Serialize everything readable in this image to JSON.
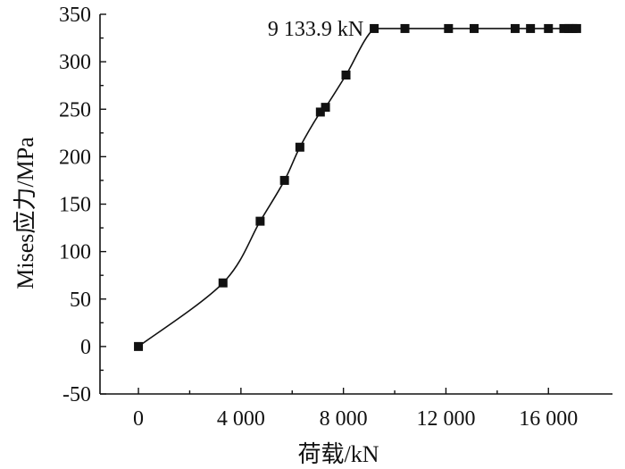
{
  "chart_data": {
    "type": "line",
    "title": "",
    "xlabel": "荷载/kN",
    "ylabel": "Mises应力/MPa",
    "xlim": [
      -1500,
      18500
    ],
    "ylim": [
      -50,
      350
    ],
    "xticks": [
      {
        "value": 0,
        "label": "0"
      },
      {
        "value": 4000,
        "label": "4 000"
      },
      {
        "value": 8000,
        "label": "8 000"
      },
      {
        "value": 12000,
        "label": "12 000"
      },
      {
        "value": 16000,
        "label": "16 000"
      }
    ],
    "yticks": [
      {
        "value": -50,
        "label": "-50"
      },
      {
        "value": 0,
        "label": "0"
      },
      {
        "value": 50,
        "label": "50"
      },
      {
        "value": 100,
        "label": "100"
      },
      {
        "value": 150,
        "label": "150"
      },
      {
        "value": 200,
        "label": "200"
      },
      {
        "value": 250,
        "label": "250"
      },
      {
        "value": 300,
        "label": "300"
      },
      {
        "value": 350,
        "label": "350"
      }
    ],
    "grid": false,
    "series": [
      {
        "points": [
          {
            "x": 0,
            "y": 0
          },
          {
            "x": 3300,
            "y": 67
          },
          {
            "x": 4750,
            "y": 132
          },
          {
            "x": 5700,
            "y": 175
          },
          {
            "x": 6300,
            "y": 210
          },
          {
            "x": 7100,
            "y": 247
          },
          {
            "x": 7300,
            "y": 252
          },
          {
            "x": 8100,
            "y": 286
          },
          {
            "x": 9200,
            "y": 335
          },
          {
            "x": 10400,
            "y": 335
          },
          {
            "x": 12100,
            "y": 335
          },
          {
            "x": 13100,
            "y": 335
          },
          {
            "x": 14700,
            "y": 335
          },
          {
            "x": 15300,
            "y": 335
          },
          {
            "x": 16000,
            "y": 335
          },
          {
            "x": 16600,
            "y": 335
          },
          {
            "x": 16800,
            "y": 335
          },
          {
            "x": 16950,
            "y": 335
          },
          {
            "x": 17100,
            "y": 335
          }
        ]
      }
    ],
    "annotation": {
      "text": "9 133.9 kN",
      "x": 9134,
      "y": 335
    }
  }
}
